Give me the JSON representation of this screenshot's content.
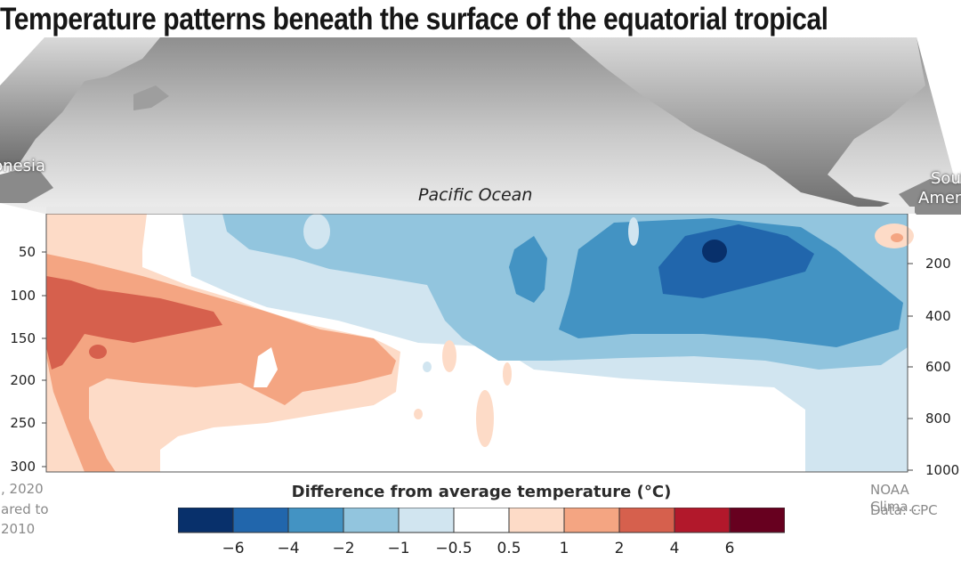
{
  "title": "Temperature patterns beneath the surface of the equatorial tropical Pacific",
  "map": {
    "ocean_label": "Pacific Ocean",
    "left_label": "Indonesia",
    "right_label_line1": "South",
    "right_label_line2": "America"
  },
  "axes": {
    "left_ticks": [
      "50",
      "100",
      "150",
      "200",
      "250",
      "300"
    ],
    "right_ticks": [
      "200",
      "400",
      "600",
      "800",
      "1000"
    ]
  },
  "footer": {
    "left_line1": "…, 2020",
    "left_line2": "…ared to",
    "left_line3": "…2010",
    "right_line1": "NOAA Clima…",
    "right_line2": "Data: CPC"
  },
  "legend": {
    "title": "Difference from average temperature (°C)",
    "colors": [
      "#08306b",
      "#2166ac",
      "#4393c3",
      "#92c5de",
      "#d1e5f0",
      "#ffffff",
      "#fddbc7",
      "#f4a582",
      "#d6604d",
      "#b2182b",
      "#67001f"
    ],
    "labels": [
      "−6",
      "−4",
      "−2",
      "−1",
      "−0.5",
      "0.5",
      "1",
      "2",
      "4",
      "6"
    ]
  },
  "chart_data": {
    "type": "heatmap",
    "title": "Difference from average temperature (°C)",
    "depth_axis_left_ticks": [
      50,
      100,
      150,
      200,
      250,
      300
    ],
    "depth_axis_right_ticks": [
      200,
      400,
      600,
      800,
      1000
    ],
    "color_bins": [
      -6,
      -4,
      -2,
      -1,
      -0.5,
      0.5,
      1,
      2,
      4,
      6
    ]
  }
}
